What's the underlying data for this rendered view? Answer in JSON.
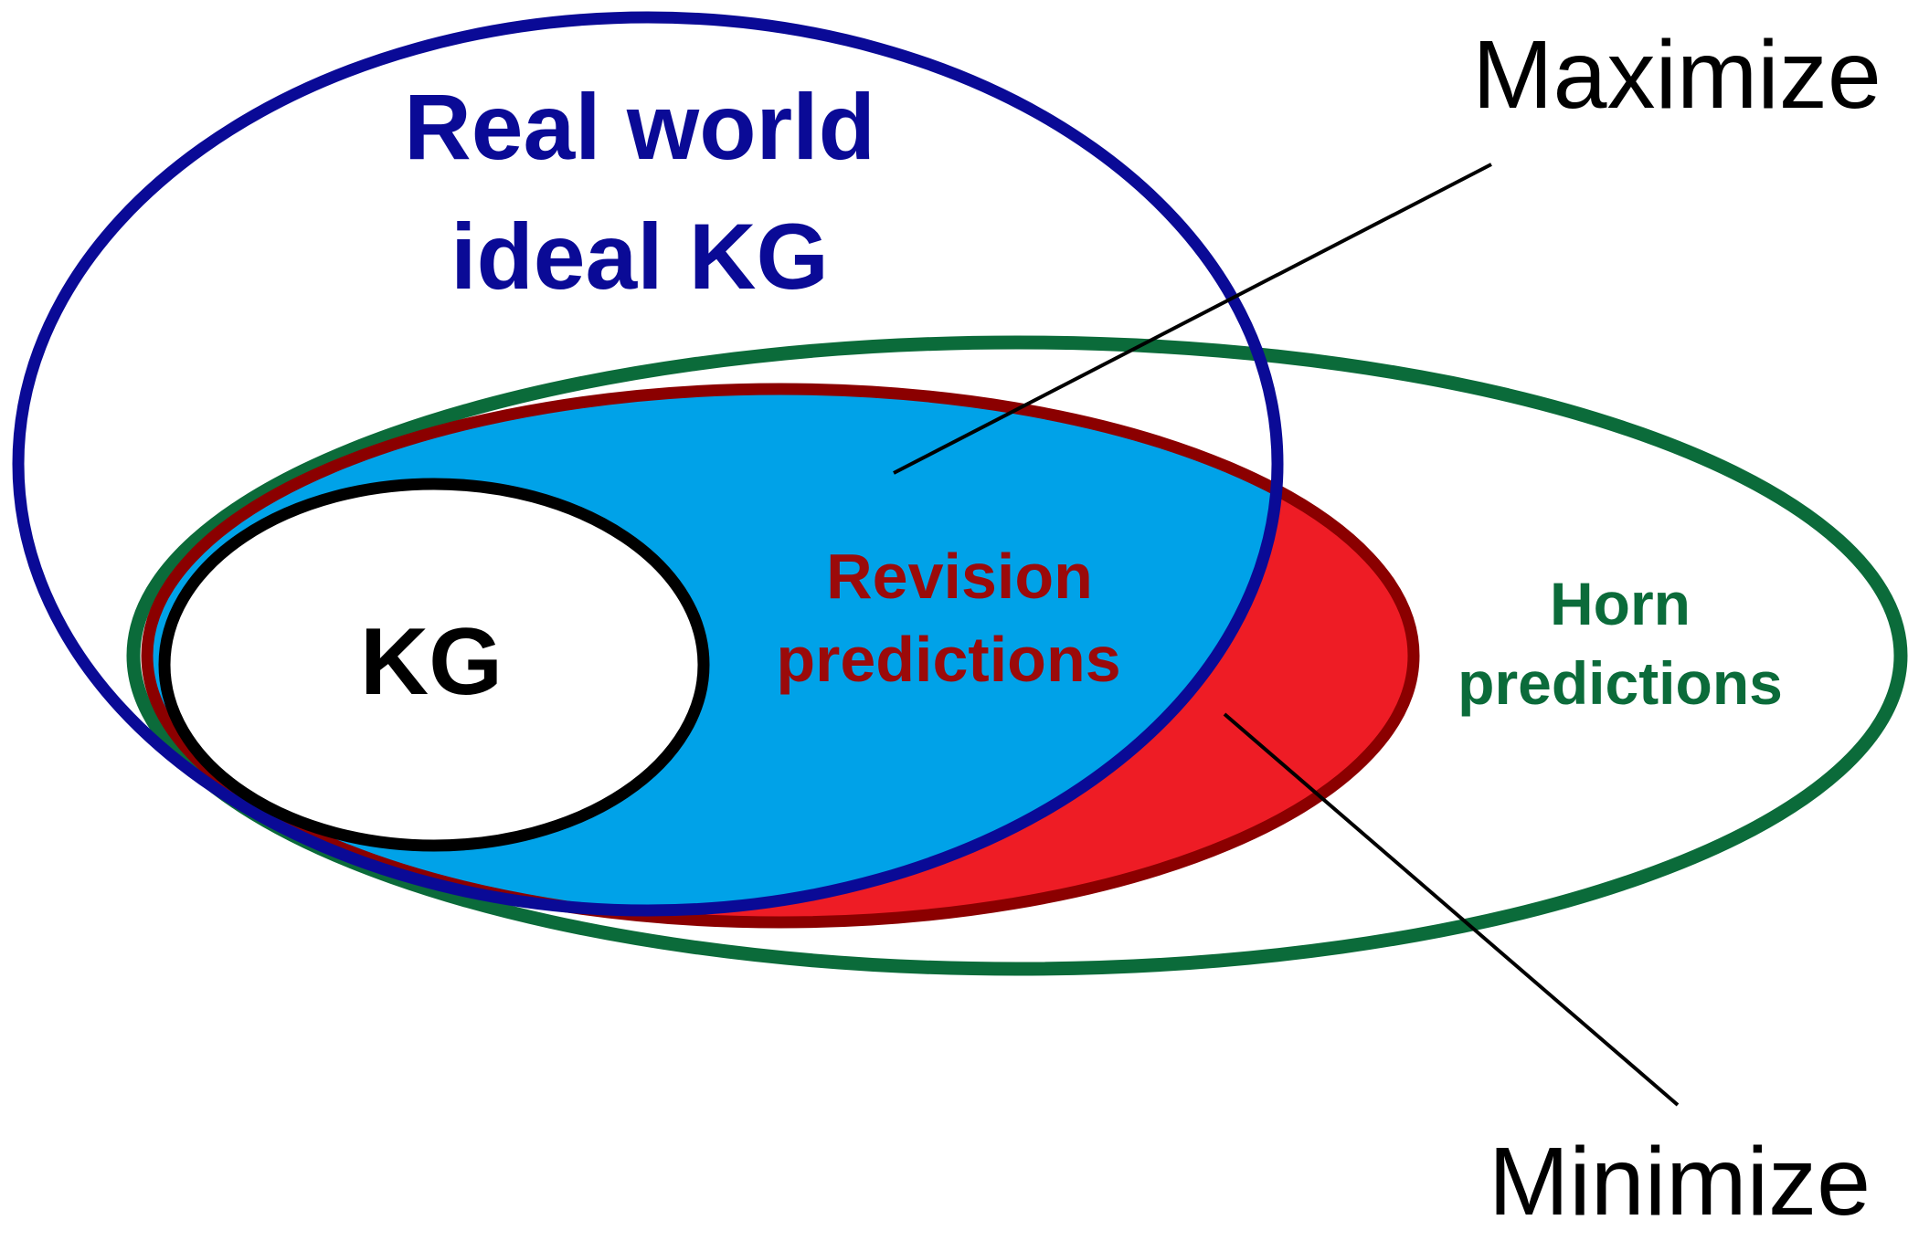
{
  "labels": {
    "real_world_line1": "Real world",
    "real_world_line2": "ideal KG",
    "kg": "KG",
    "revision_line1": "Revision",
    "revision_line2": "predictions",
    "horn_line1": "Horn",
    "horn_line2": "predictions",
    "maximize": "Maximize",
    "minimize": "Minimize"
  },
  "colors": {
    "real_world": "#0a0a96",
    "horn": "#0b6b3a",
    "revision_border": "#8b0000",
    "revision_fill_outside": "#ee1c25",
    "overlap_fill": "#00a2e8",
    "kg": "#000000",
    "revision_text": "#9b0a0a",
    "callout": "#000000"
  }
}
